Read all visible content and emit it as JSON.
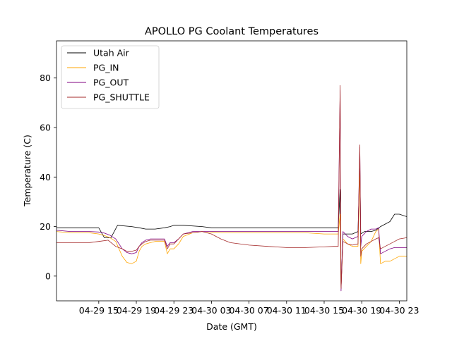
{
  "chart_data": {
    "type": "line",
    "title": "APOLLO PG Coolant Temperatures",
    "xlabel": "Date (GMT)",
    "ylabel": "Temperature (C)",
    "xlim": [
      10.5,
      47.8
    ],
    "ylim": [
      -10,
      95
    ],
    "x_unit": "hours since 04-29 00:00 GMT",
    "x_ticks": [
      {
        "value": 15,
        "label": "04-29 15"
      },
      {
        "value": 19,
        "label": "04-29 19"
      },
      {
        "value": 23,
        "label": "04-29 23"
      },
      {
        "value": 27,
        "label": "04-30 03"
      },
      {
        "value": 31,
        "label": "04-30 07"
      },
      {
        "value": 35,
        "label": "04-30 11"
      },
      {
        "value": 39,
        "label": "04-30 15"
      },
      {
        "value": 43,
        "label": "04-30 19"
      },
      {
        "value": 47,
        "label": "04-30 23"
      }
    ],
    "y_ticks": [
      {
        "value": 0,
        "label": "0"
      },
      {
        "value": 20,
        "label": "20"
      },
      {
        "value": 40,
        "label": "40"
      },
      {
        "value": 60,
        "label": "60"
      },
      {
        "value": 80,
        "label": "80"
      }
    ],
    "grid": false,
    "legend_position": "top-left",
    "series": [
      {
        "name": "Utah Air",
        "color": "#000000",
        "x": [
          10.5,
          12,
          14,
          15,
          15.6,
          16.3,
          17,
          18.5,
          19.3,
          20,
          21,
          22,
          22.6,
          23,
          24,
          26,
          27,
          28,
          29,
          31,
          33,
          35,
          37,
          39,
          40,
          40.5,
          40.7,
          40.8,
          41,
          41.5,
          42,
          42.6,
          42.8,
          42.9,
          43.3,
          44,
          44.5,
          45,
          46,
          46.5,
          47,
          47.8
        ],
        "y": [
          19.5,
          19.5,
          19.5,
          19.5,
          15.5,
          15.5,
          20.5,
          20,
          19.5,
          19,
          19,
          19.5,
          20,
          20.5,
          20.5,
          20,
          19.5,
          19.5,
          19.5,
          19.5,
          19.5,
          19.5,
          19.5,
          19.5,
          19.5,
          19.5,
          35,
          -5,
          17,
          17,
          17,
          18,
          45,
          17,
          18,
          18,
          18.5,
          20,
          22,
          25,
          25,
          24
        ]
      },
      {
        "name": "PG_IN",
        "color": "#ffa500",
        "x": [
          10.5,
          12,
          14,
          15,
          15.5,
          16.2,
          16.8,
          17.5,
          18,
          18.5,
          19,
          19.3,
          19.6,
          20,
          20.5,
          21,
          22,
          22.3,
          22.6,
          23,
          23.5,
          24,
          25,
          26,
          27,
          28,
          29,
          31,
          33,
          35,
          37,
          39,
          40,
          40.5,
          40.7,
          40.8,
          41,
          41.5,
          42,
          42.6,
          42.8,
          42.9,
          43,
          43.5,
          44,
          44.5,
          44.8,
          45,
          45.5,
          46,
          46.5,
          47,
          47.8
        ],
        "y": [
          18,
          17.5,
          17.5,
          17,
          16.5,
          15.5,
          14,
          8,
          5.5,
          5,
          6,
          10,
          12,
          13,
          13.5,
          14,
          14,
          9,
          11,
          11,
          13,
          16,
          17.5,
          18,
          17.8,
          17.5,
          17.5,
          17.5,
          17.5,
          17.5,
          17.5,
          17,
          17,
          17,
          25,
          -5,
          15,
          13,
          12,
          12,
          43,
          5,
          10,
          12,
          14,
          18,
          19,
          5,
          6,
          6,
          7,
          8,
          8
        ]
      },
      {
        "name": "PG_OUT",
        "color": "#800080",
        "x": [
          10.5,
          12,
          14,
          15,
          15.5,
          16.2,
          16.8,
          17.5,
          18,
          18.5,
          19,
          19.3,
          19.6,
          20,
          20.5,
          21,
          22,
          22.3,
          22.6,
          23,
          23.5,
          24,
          25,
          26,
          27,
          28,
          29,
          31,
          33,
          35,
          37,
          39,
          40,
          40.5,
          40.7,
          40.8,
          41,
          41.5,
          42,
          42.6,
          42.8,
          42.9,
          43,
          43.5,
          44,
          44.5,
          44.8,
          45,
          45.5,
          46,
          46.5,
          47,
          47.8
        ],
        "y": [
          18.5,
          18,
          18,
          17.8,
          17.5,
          16.5,
          15,
          11,
          9.5,
          9,
          9.5,
          12,
          13.5,
          14.5,
          15,
          15,
          15,
          12,
          13.5,
          13.5,
          15,
          17,
          18,
          18,
          18,
          18,
          18,
          18,
          18,
          18,
          18,
          18,
          18,
          18,
          75,
          -6,
          18,
          16,
          15,
          16,
          52,
          12,
          16,
          18,
          19,
          19,
          19.5,
          9,
          10,
          11,
          11.5,
          11.5,
          11.5
        ]
      },
      {
        "name": "PG_SHUTTLE",
        "color": "#a52a2a",
        "x": [
          10.5,
          12,
          14,
          15,
          16,
          16.8,
          17.5,
          18,
          18.5,
          19,
          19.3,
          19.6,
          20,
          20.5,
          21,
          22,
          22.3,
          22.6,
          23,
          23.5,
          24,
          25,
          26,
          27,
          28,
          29,
          31,
          33,
          35,
          37,
          39,
          40,
          40.5,
          40.7,
          40.8,
          41,
          41.5,
          42,
          42.6,
          42.8,
          42.9,
          43,
          43.5,
          44,
          44.5,
          44.8,
          45,
          45.5,
          46,
          46.5,
          47,
          47.8
        ],
        "y": [
          13.5,
          13.5,
          13.5,
          14,
          14.5,
          12,
          11,
          10,
          10,
          10.5,
          12,
          13,
          14,
          14.5,
          14.5,
          14.5,
          11,
          13,
          13,
          15,
          17,
          17.5,
          18,
          17,
          15,
          13.5,
          12.5,
          12,
          11.5,
          11.5,
          11.8,
          12,
          12,
          77,
          -5,
          14,
          13,
          12.5,
          13,
          53,
          8,
          11,
          13,
          14,
          15,
          15.5,
          11,
          12,
          13,
          14,
          15,
          15.5
        ]
      }
    ]
  }
}
